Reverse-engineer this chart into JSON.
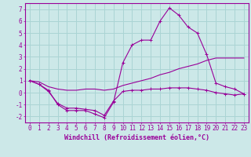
{
  "xlabel": "Windchill (Refroidissement éolien,°C)",
  "bg_color": "#cce8e8",
  "grid_color": "#aad4d4",
  "line_color": "#990099",
  "x_ticks": [
    0,
    1,
    2,
    3,
    4,
    5,
    6,
    7,
    8,
    9,
    10,
    11,
    12,
    13,
    14,
    15,
    16,
    17,
    18,
    19,
    20,
    21,
    22,
    23
  ],
  "ylim": [
    -2.5,
    7.5
  ],
  "xlim": [
    -0.5,
    23.5
  ],
  "line1_x": [
    0,
    1,
    2,
    3,
    4,
    5,
    6,
    7,
    8,
    9,
    10,
    11,
    12,
    13,
    14,
    15,
    16,
    17,
    18,
    19,
    20,
    21,
    22,
    23
  ],
  "line1_y": [
    1.0,
    0.7,
    0.2,
    -1.0,
    -1.5,
    -1.5,
    -1.5,
    -1.8,
    -2.1,
    -0.8,
    2.5,
    4.0,
    4.4,
    4.4,
    6.0,
    7.1,
    6.5,
    5.5,
    5.0,
    3.2,
    0.8,
    0.5,
    0.3,
    -0.1
  ],
  "line2_x": [
    0,
    1,
    2,
    3,
    4,
    5,
    6,
    7,
    8,
    9,
    10,
    11,
    12,
    13,
    14,
    15,
    16,
    17,
    18,
    19,
    20,
    21,
    22,
    23
  ],
  "line2_y": [
    1.0,
    0.9,
    0.5,
    0.3,
    0.2,
    0.2,
    0.3,
    0.3,
    0.2,
    0.3,
    0.6,
    0.8,
    1.0,
    1.2,
    1.5,
    1.7,
    2.0,
    2.2,
    2.4,
    2.7,
    2.9,
    2.9,
    2.9,
    2.9
  ],
  "line3_x": [
    0,
    1,
    2,
    3,
    4,
    5,
    6,
    7,
    8,
    9,
    10,
    11,
    12,
    13,
    14,
    15,
    16,
    17,
    18,
    19,
    20,
    21,
    22,
    23
  ],
  "line3_y": [
    1.0,
    0.7,
    0.1,
    -0.9,
    -1.3,
    -1.3,
    -1.4,
    -1.5,
    -1.9,
    -0.7,
    0.1,
    0.2,
    0.2,
    0.3,
    0.3,
    0.4,
    0.4,
    0.4,
    0.3,
    0.2,
    0.0,
    -0.1,
    -0.2,
    -0.1
  ],
  "yticks": [
    -2,
    -1,
    0,
    1,
    2,
    3,
    4,
    5,
    6,
    7
  ],
  "tick_fontsize": 5.5,
  "xlabel_fontsize": 6.0
}
